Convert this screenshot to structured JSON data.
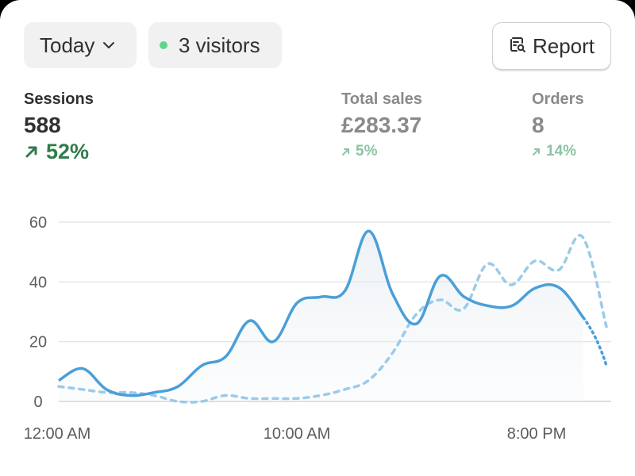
{
  "toolbar": {
    "date_range_label": "Today",
    "visitors_label": "3 visitors",
    "report_label": "Report"
  },
  "metrics": [
    {
      "label": "Sessions",
      "value": "588",
      "delta": "52%"
    },
    {
      "label": "Total sales",
      "value": "£283.37",
      "delta": "5%"
    },
    {
      "label": "Orders",
      "value": "8",
      "delta": "14%"
    }
  ],
  "colors": {
    "current_series": "#4a9fd8",
    "comparison_series": "#9bcbe8",
    "positive_delta": "#2f7d4c",
    "live_dot": "#5ed88a"
  },
  "chart_data": {
    "type": "line",
    "ylim": [
      0,
      60
    ],
    "y_ticks": [
      "0",
      "20",
      "40",
      "60"
    ],
    "x_ticks": [
      "12:00 AM",
      "10:00 AM",
      "8:00 PM"
    ],
    "grid": true,
    "legend": "none",
    "series": [
      {
        "style": "solid",
        "values": [
          7,
          11,
          4,
          2,
          3,
          5,
          12,
          15,
          27,
          20,
          33,
          35,
          37,
          57,
          36,
          26,
          42,
          35,
          32,
          32,
          38,
          38,
          28
        ],
        "projected_tail": [
          28,
          12
        ]
      },
      {
        "style": "dashed",
        "values": [
          5,
          4,
          3,
          3,
          2,
          0,
          0,
          2,
          1,
          1,
          1,
          2,
          4,
          7,
          16,
          29,
          34,
          31,
          46,
          39,
          47,
          44,
          55,
          25
        ]
      }
    ]
  }
}
